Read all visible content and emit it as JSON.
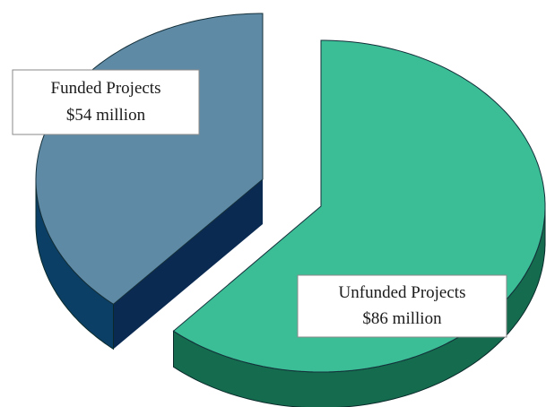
{
  "chart_data": {
    "type": "pie",
    "categories": [
      "Funded Projects",
      "Unfunded Projects"
    ],
    "values": [
      54,
      86
    ],
    "value_labels": [
      "$54 million",
      "$86 million"
    ],
    "colors": [
      "#5f8aa6",
      "#3bbd95"
    ],
    "side_colors": [
      "#0b3f66",
      "#146b4e"
    ],
    "face_colors": [
      "#0b2a52",
      "#146b4e"
    ]
  }
}
